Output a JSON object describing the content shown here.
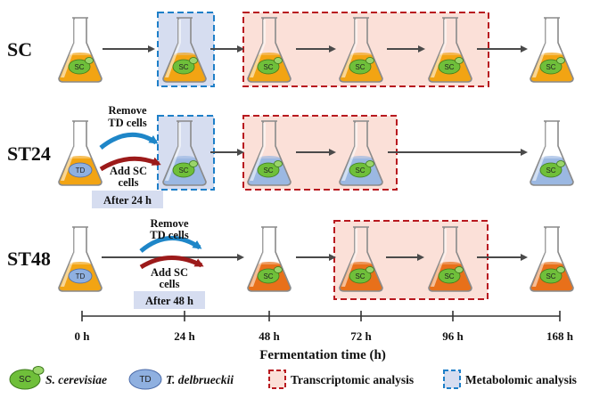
{
  "rows": [
    {
      "label": "SC"
    },
    {
      "label": "ST24"
    },
    {
      "label": "ST48"
    }
  ],
  "cells": {
    "sc": "SC",
    "td": "TD"
  },
  "notes": {
    "remove_td": [
      "Remove",
      "TD cells"
    ],
    "add_sc": [
      "Add SC",
      "cells"
    ],
    "after_24": "After 24 h",
    "after_48": "After 48 h"
  },
  "axis": {
    "ticks": [
      "0 h",
      "24 h",
      "48 h",
      "72 h",
      "96 h",
      "168 h"
    ],
    "title": "Fermentation time (h)"
  },
  "legend": {
    "sc_name": "S. cerevisiae",
    "td_name": "T. delbrueckii",
    "transcriptomic": "Transcriptomic analysis",
    "metabolomic": "Metabolomic analysis"
  },
  "colors": {
    "orange_broth": "#f2a413",
    "dark_orange_broth": "#e8701a",
    "blue_broth": "#9bb8e2",
    "sc_cell": "#6fbf3a",
    "td_cell": "#8fb0e0",
    "transcriptomic_box": "#b8191f",
    "metabolomic_box": "#1e7fc8",
    "transcriptomic_fill": "#fbe0d8",
    "metabolomic_fill": "#d6ddf0",
    "remove_arrow": "#1e86c8",
    "add_arrow": "#9c1a1a"
  }
}
